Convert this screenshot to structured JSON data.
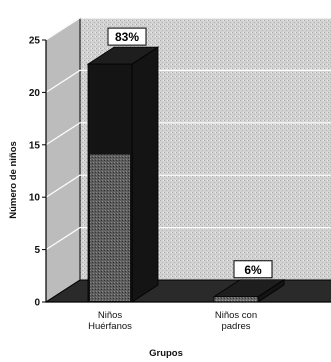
{
  "chart_data": {
    "type": "bar",
    "categories": [
      "Niños\nHuérfanos",
      "Niños con\npadres"
    ],
    "values": [
      22.7,
      0.5
    ],
    "data_labels": [
      "83%",
      "6%"
    ],
    "ylabel": "Número de niños",
    "xlabel": "Grupos",
    "ylim": [
      0,
      25
    ],
    "yticks": [
      0,
      5,
      10,
      15,
      20,
      25
    ],
    "grid": true,
    "style": "3d",
    "colors": {
      "bar_dark": "#141414",
      "bar_mid": "#5a5a5a",
      "wall": "#cfcfcf",
      "floor": "#2a2a2a",
      "grid": "#ffffff"
    }
  }
}
